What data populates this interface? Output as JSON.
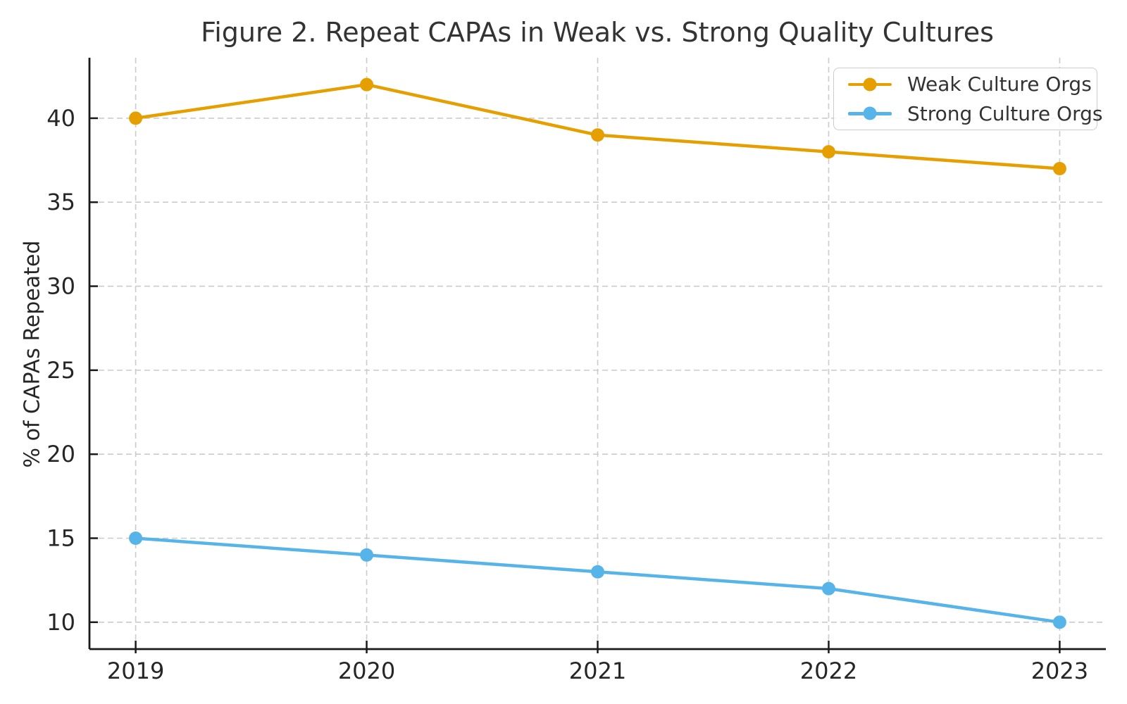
{
  "chart_data": {
    "type": "line",
    "title": "Figure 2. Repeat CAPAs in Weak vs. Strong Quality Cultures",
    "xlabel": "",
    "ylabel": "% of CAPAs Repeated",
    "x": [
      2019,
      2020,
      2021,
      2022,
      2023
    ],
    "x_tick_labels": [
      "2019",
      "2020",
      "2021",
      "2022",
      "2023"
    ],
    "y_ticks": [
      10,
      15,
      20,
      25,
      30,
      35,
      40
    ],
    "y_tick_labels": [
      "10",
      "15",
      "20",
      "25",
      "30",
      "35",
      "40"
    ],
    "xlim": [
      2018.8,
      2023.2
    ],
    "ylim": [
      8.4,
      43.6
    ],
    "grid": true,
    "grid_style": "dashed",
    "legend_position": "upper right",
    "series": [
      {
        "name": "Weak Culture Orgs",
        "color": "#E69F00",
        "values": [
          40,
          42,
          39,
          38,
          37
        ]
      },
      {
        "name": "Strong Culture Orgs",
        "color": "#56B4E9",
        "values": [
          15,
          14,
          13,
          12,
          10
        ]
      }
    ],
    "style": {
      "grid_color": "#cbcbcb",
      "spine_color": "#1a1a1a",
      "tick_text_color": "#262626",
      "title_color": "#333333",
      "background": "#ffffff"
    }
  }
}
